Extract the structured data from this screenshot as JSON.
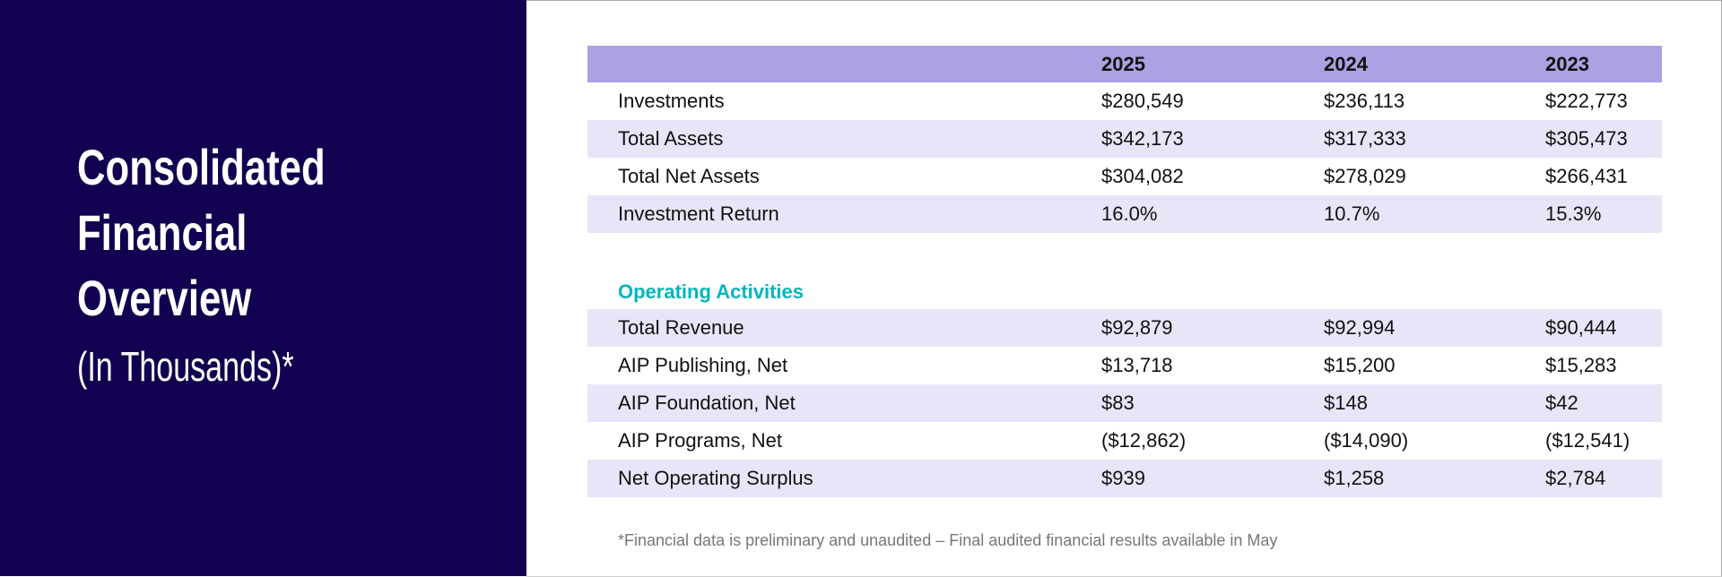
{
  "sidebar": {
    "title_lines": [
      "Consolidated",
      "Financial",
      "Overview"
    ],
    "subtitle": "(In Thousands)*"
  },
  "colors": {
    "sidebar_bg": "#120050",
    "header_bg": "#aaa2e3",
    "stripe_bg": "#e8e5f8",
    "section_accent": "#00b5bd"
  },
  "table": {
    "columns": [
      "",
      "2025",
      "2024",
      "2023"
    ],
    "rows": [
      [
        "Investments",
        "$280,549",
        "$236,113",
        "$222,773"
      ],
      [
        "Total Assets",
        "$342,173",
        "$317,333",
        "$305,473"
      ],
      [
        "Total Net Assets",
        "$304,082",
        "$278,029",
        "$266,431"
      ],
      [
        "Investment Return",
        "16.0%",
        "10.7%",
        "15.3%"
      ]
    ],
    "section_label": "Operating Activities",
    "section_rows": [
      [
        "Total Revenue",
        "$92,879",
        "$92,994",
        "$90,444"
      ],
      [
        "AIP Publishing, Net",
        "$13,718",
        "$15,200",
        "$15,283"
      ],
      [
        "AIP Foundation, Net",
        "$83",
        "$148",
        "$42"
      ],
      [
        "AIP Programs, Net",
        "($12,862)",
        "($14,090)",
        "($12,541)"
      ],
      [
        "Net Operating Surplus",
        "$939",
        "$1,258",
        "$2,784"
      ]
    ]
  },
  "footnote": "*Financial data is preliminary and unaudited – Final audited financial results available in May"
}
